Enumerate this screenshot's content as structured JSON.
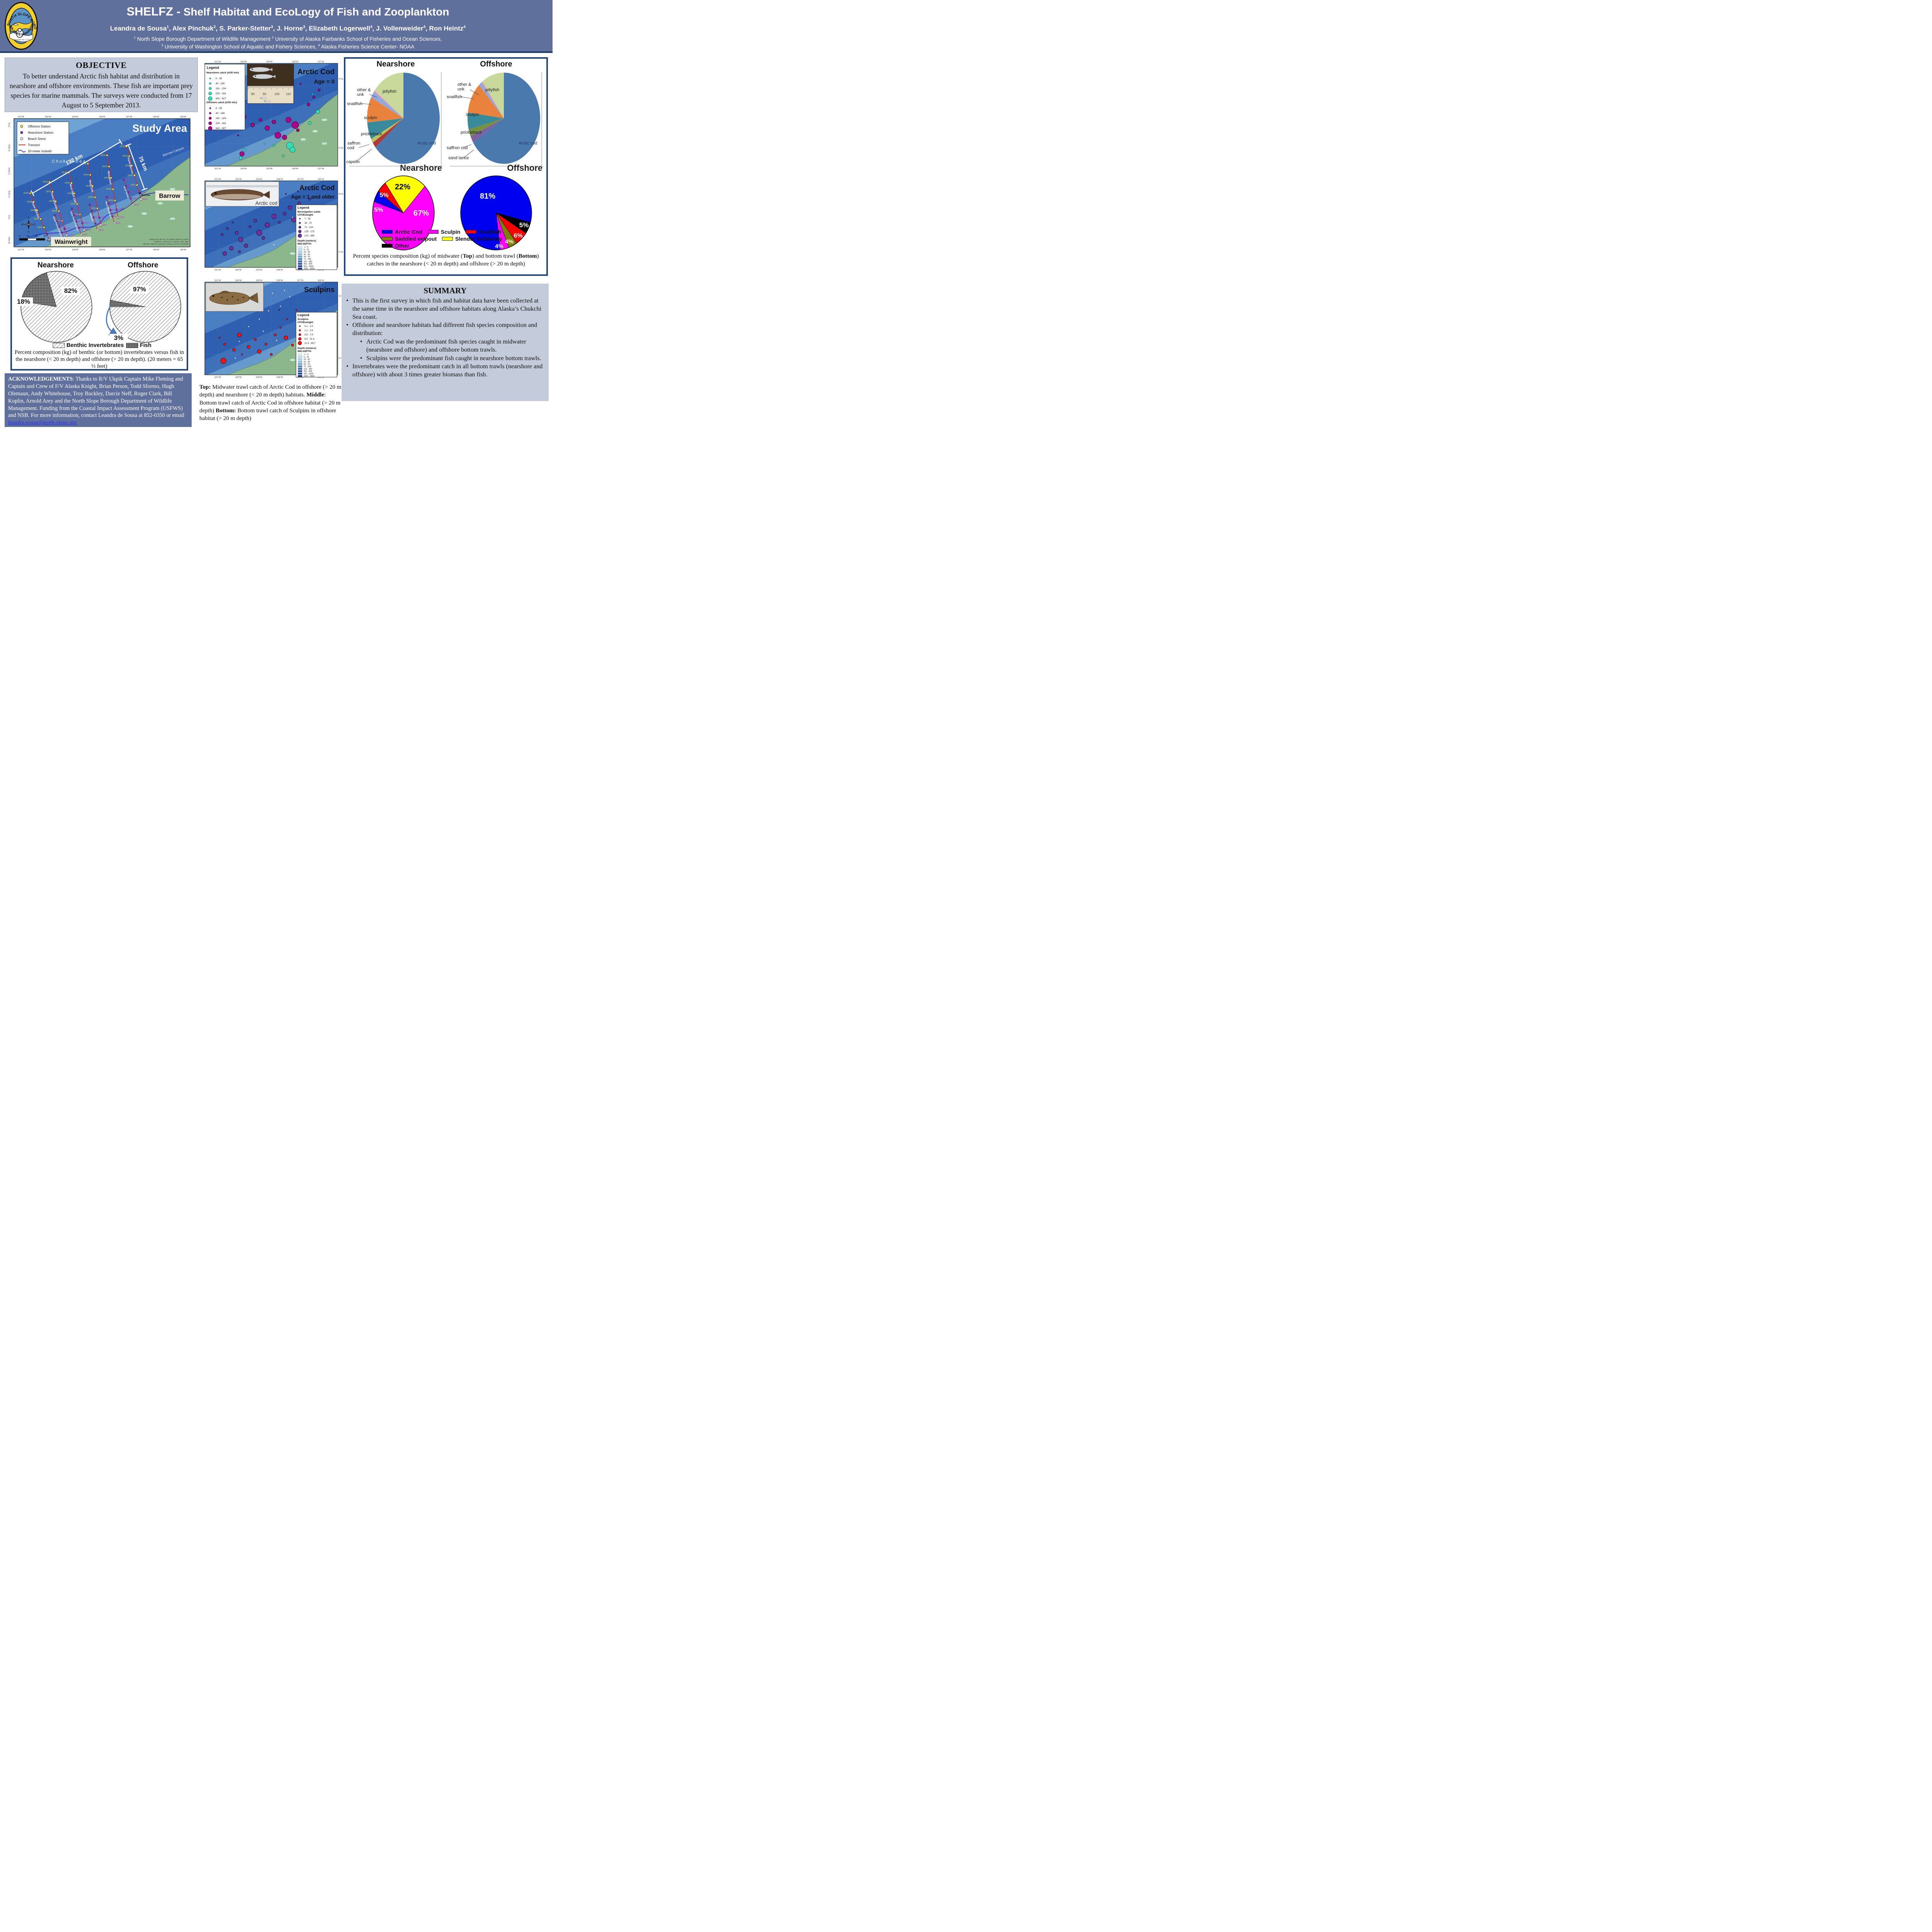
{
  "header": {
    "title_main": "SHELFZ -",
    "title_rest": " Shelf Habitat and EcoLogy of Fish and Zooplankton",
    "authors": [
      {
        "t": "Leandra de Sousa"
      },
      {
        "s": "1"
      },
      {
        "t": ", Alex Pinchuk"
      },
      {
        "s": "2"
      },
      {
        "t": ", S. Parker-Stetter"
      },
      {
        "s": "3"
      },
      {
        "t": ", J. Horne"
      },
      {
        "s": "3"
      },
      {
        "t": ", Elizabeth Logerwell"
      },
      {
        "s": "4"
      },
      {
        "t": ", J. Vollenweider"
      },
      {
        "s": "4"
      },
      {
        "t": ", Ron Heintz"
      },
      {
        "s": "4"
      }
    ],
    "affil1": [
      {
        "s": "1"
      },
      {
        "t": " North Slope Borough Department of Wildlife Management "
      },
      {
        "s": "2"
      },
      {
        "t": " University of Alaska Fairbanks School of Fisheries and Ocean Sciences,"
      }
    ],
    "affil2": [
      {
        "s": "3"
      },
      {
        "t": " University of Washington School of Aquatic and Fishery Sciences, "
      },
      {
        "s": "4"
      },
      {
        "t": " Alaska Fisheries Science Center- NOAA"
      }
    ],
    "logo": {
      "arc_top": "NORTH SLOPE BOROUGH",
      "banner": "WILDLIFE MANAGEMENT",
      "inner": "Incorporated July 2, 1972"
    }
  },
  "objective": {
    "title": "OBJECTIVE",
    "body": "To better understand Arctic fish habitat and distribution in nearshore and offshore environments. These fish are important prey species for marine mammals. The surveys were conducted from 17 August to 5 September 2013."
  },
  "study_map": {
    "title": "Study Area",
    "sea_label": "C h u k c h i   S e a",
    "canyon_label": "Barrow Canyon",
    "dist_long": "132 km",
    "dist_short": "75 km",
    "city_barrow": "Barrow",
    "city_barrow_small": "Barrow",
    "city_wainwright": "Wainwright",
    "legend": [
      {
        "sym": "offshore",
        "label": "Offshore Station"
      },
      {
        "sym": "nearshore",
        "label": "Nearshore Station"
      },
      {
        "sym": "seine",
        "label": "Beach Seine"
      },
      {
        "sym": "transect",
        "label": "Transect"
      },
      {
        "sym": "isobath",
        "label": "20-meter Isobath"
      }
    ],
    "transects_long": [
      "Point Belcher",
      "Point Franklin",
      "West Skull Cliff",
      "Skull Cliff",
      "Monument",
      "Point Barrow"
    ],
    "transects_short": [
      "West Point Franklin",
      "East Point Franklin",
      "Nullavik",
      "West Monument",
      "Boat Ramp"
    ],
    "offshore_stations": [
      "OF05",
      "OF04",
      "OF03",
      "OF02",
      "OF01"
    ],
    "nearshore_stations": [
      "NF05",
      "NF04",
      "NF03",
      "NF02",
      "NF01"
    ],
    "lon_ticks": [
      "161°W",
      "160°W",
      "159°W",
      "158°W",
      "157°W",
      "156°W",
      "155°W"
    ],
    "lat_ticks": [
      "72°N",
      "71°45'N",
      "71°30'N",
      "71°15'N",
      "71°N",
      "70°45'N"
    ],
    "depth_contour_labels": [
      "20",
      "40",
      "60",
      "80",
      "100"
    ],
    "scale_ticks": [
      "0",
      "10",
      "20",
      "30"
    ],
    "scale_unit": "km",
    "compass": [
      "N",
      "E",
      "S",
      "W"
    ],
    "credits": [
      "Bathymetry: IBCAO_V3; isobath depths in meters",
      "Projection: UTM Zone 4; Datum: WGS 1984",
      "ABR file: SHELFZ_Transects_Stations_03-322, 20130805"
    ]
  },
  "benthic": {
    "titles": [
      "Nearshore",
      "Offshore"
    ],
    "legend": [
      {
        "label": "Benthic Invertebrates",
        "pattern": "hatch"
      },
      {
        "label": "Fish",
        "pattern": "dots"
      }
    ],
    "caption": "Percent composition (kg) of benthic (or bottom) invertebrates versus fish in the nearshore (< 20 m depth) and offshore (> 20 m depth). (20 meters = 65 ½ feet)"
  },
  "ack": {
    "segments": [
      {
        "t": "ACKNOWLEDGEMENTS",
        "b": 1
      },
      {
        "t": ": Thanks to R/V Ukpik Captain Mike Fleming and Captain and Crew of F/V  Alaska Knight, Brian Person, Todd Sformo, Hugh Olemaun, Andy Whitehouse, Troy Buckley, Darcie Neff, Roger Clark, Bill Koplin, Arnold Arey and the  North Slope Borough Department of Wildlife Management.  Funding from the Coastal Impact Assessment Program (USFWS) and NSB. For more information, contact Leandra de Sousa at 852-0350 or email "
      },
      {
        "t": "leandra.sousa@north-slope.org",
        "link": 1
      }
    ]
  },
  "maps": [
    {
      "title": "Arctic Cod",
      "subtitle": "Age = 0",
      "lon_ticks": [
        "161°W",
        "160°W",
        "159°W",
        "158°W",
        "157°W"
      ],
      "lat_ticks": [
        "72°N",
        "71°N"
      ],
      "legend_title": "Legend",
      "legend_sections": [
        {
          "heading": "Nearshore catch (#/30 min)",
          "classes": [
            "0 - 39",
            "40 - 160",
            "161 - 224",
            "225 - 341",
            "342 - 927"
          ],
          "color": "#35dfb5",
          "stroke": "#14624b"
        },
        {
          "heading": "Offshore catch (#/30 min)",
          "classes": [
            "0 - 39",
            "40 - 160",
            "161 - 224",
            "225 - 341",
            "342 - 927"
          ],
          "color": "#b5008f",
          "stroke": "#43003a"
        }
      ],
      "inset_numbers": [
        "80",
        "90",
        "100",
        "110"
      ]
    },
    {
      "title": "Arctic Cod",
      "subtitle": "Age = 1 and older",
      "photo_label": "Arctic cod",
      "lon_ticks": [
        "161°W",
        "160°W",
        "159°W",
        "158°W",
        "157°W",
        "156°W"
      ],
      "lat_ticks": [
        "72°N",
        "71°N"
      ],
      "legend_title": "Legend",
      "species_line1": "Boreogadus saida",
      "species_line2": "CPUEweight",
      "cpue_classes": [
        "7 - 33",
        "34 - 70",
        "71 - 124",
        "125 - 173",
        "174 - 489"
      ],
      "cpue_color": "#7030a0",
      "depth_title": "Depth (meters)",
      "depth_sub": "MID-DEPTH",
      "depth_classes": [
        "-1 - 5",
        "6 - 25",
        "26 - 40",
        "41 - 55",
        "56 - 70",
        "71 - 150",
        "151 - 350",
        "351 - 900",
        "901 - 1500",
        "1501 - 3500"
      ]
    },
    {
      "title": "Sculpins",
      "subtitle": "",
      "lon_ticks": [
        "161°W",
        "160°W",
        "159°W",
        "158°W",
        "157°W",
        "156°W"
      ],
      "lat_ticks": [
        "72°N",
        "71°N"
      ],
      "legend_title": "Legend",
      "species_line1": "Sculpins",
      "species_line2": "CPUEweight",
      "cpue_classes": [
        "0.1 - 1.0",
        "1.1 - 3.4",
        "3.5 - 7.9",
        "8.0 - 21.4",
        "21.5 - 89.7"
      ],
      "cpue_color": "#ff1111",
      "depth_title": "Depth (meters)",
      "depth_sub": "MID-DEPTH",
      "depth_classes": [
        "-1 - 5",
        "6 - 25",
        "26 - 40",
        "41 - 55",
        "56 - 70",
        "71 - 150",
        "151 - 350",
        "351 - 900",
        "901 - 1500",
        "1501 - 3500"
      ]
    }
  ],
  "maps_caption": {
    "segments": [
      {
        "t": "Top:",
        "b": 1
      },
      {
        "t": " Midwater trawl catch of Arctic Cod  in offshore (> 20 m depth) and nearshore (< 20 m depth) habitats. "
      },
      {
        "t": "Middle",
        "b": 1
      },
      {
        "t": ": Bottom trawl catch of Arctic Cod in offshore habitat (> 20 m depth) "
      },
      {
        "t": "Bottom:",
        "b": 1
      },
      {
        "t": " Bottom trawl catch of Sculpins in offshore habitat (> 20 m depth)"
      }
    ]
  },
  "species_box": {
    "col_titles": [
      "Nearshore",
      "Offshore"
    ],
    "watermarks": [
      "Nearshore",
      "Offshore"
    ],
    "legend": [
      {
        "label": "Arctic Cod",
        "color": "#0000f0"
      },
      {
        "label": "Sculpin",
        "color": "#ff00ff"
      },
      {
        "label": "Snailfish",
        "color": "#ff0000"
      },
      {
        "label": "Saddled eelpout",
        "color": "#7f7f00"
      },
      {
        "label": "Slender Eelblenny",
        "color": "#ffff00"
      },
      {
        "label": "Other",
        "color": "#000000"
      }
    ],
    "caption_segments": [
      {
        "t": "Percent species composition (kg) of midwater ("
      },
      {
        "t": "Top",
        "b": 1
      },
      {
        "t": ") and bottom trawl ("
      },
      {
        "t": "Bottom",
        "b": 1
      },
      {
        "t": ") catches in the nearshore (< 20 m depth) and offshore (> 20 m depth)"
      }
    ]
  },
  "summary": {
    "title": "SUMMARY",
    "bullets": [
      {
        "level": 1,
        "text": "This is the first survey in which fish and habitat data have been collected at the same time in the nearshore and offshore habitats along Alaska’s Chukchi Sea coast."
      },
      {
        "level": 1,
        "text": "Offshore and nearshore habitats had different fish species composition and distribution:"
      },
      {
        "level": 2,
        "text": "Arctic Cod was the predominant fish species caught in midwater (nearshore and offshore)  and offshore bottom trawls."
      },
      {
        "level": 2,
        "text": "Sculpins were the  predominant fish caught in nearshore bottom trawls."
      },
      {
        "level": 1,
        "text": "Invertebrates were the predominant catch in all bottom trawls (nearshore and offshore) with about 3 times greater biomass than fish."
      }
    ]
  },
  "chart_data": [
    {
      "id": "nearshore_midwater_species",
      "type": "pie",
      "title": "Nearshore",
      "note": "midwater trawl species composition, % of catch weight (kg), values estimated from figure",
      "start_angle": -90,
      "slices": [
        {
          "label": "Arctic cod",
          "value": 64,
          "color": "#4a79ae"
        },
        {
          "label": "capelin",
          "value": 2,
          "color": "#b03a38"
        },
        {
          "label": "saffron cod",
          "value": 1.5,
          "color": "#b9c45e"
        },
        {
          "label": "prickleback",
          "value": 6,
          "color": "#3a8a9c"
        },
        {
          "label": "sculpin",
          "value": 9,
          "color": "#e8823c"
        },
        {
          "label": "snailfish",
          "value": 2.5,
          "color": "#93a9dc"
        },
        {
          "label": "other & unk",
          "value": 0.5,
          "color": "#e8a0aa"
        },
        {
          "label": "jellyfish",
          "value": 14.5,
          "color": "#c9d89b"
        }
      ]
    },
    {
      "id": "offshore_midwater_species",
      "type": "pie",
      "title": "Offshore",
      "note": "midwater trawl species composition, % of catch weight (kg), values estimated from figure",
      "start_angle": -90,
      "slices": [
        {
          "label": "Arctic cod",
          "value": 66,
          "color": "#4a79ae"
        },
        {
          "label": "sand lance",
          "value": 2.5,
          "color": "#7d62a0"
        },
        {
          "label": "saffron cod",
          "value": 2.5,
          "color": "#76923c"
        },
        {
          "label": "prickleback",
          "value": 6,
          "color": "#3a8a9c"
        },
        {
          "label": "sculpin",
          "value": 11,
          "color": "#e8823c"
        },
        {
          "label": "snailfish",
          "value": 1.5,
          "color": "#93a9dc"
        },
        {
          "label": "other & unk",
          "value": 0.5,
          "color": "#e8a0aa"
        },
        {
          "label": "jellyfish",
          "value": 10,
          "color": "#c9d89b"
        }
      ]
    },
    {
      "id": "nearshore_bottom_trawl",
      "type": "pie",
      "start_angle": -126,
      "slices": [
        {
          "label": "Slender Eelblenny",
          "value": 22,
          "color": "#ffff00"
        },
        {
          "label": "Sculpin",
          "value": 67,
          "color": "#ff00ff"
        },
        {
          "label": "Arctic Cod",
          "value": 5,
          "color": "#0000f0"
        },
        {
          "label": "Snailfish",
          "value": 5,
          "color": "#ff0000"
        }
      ]
    },
    {
      "id": "offshore_bottom_trawl",
      "type": "pie",
      "start_angle": 15,
      "slices": [
        {
          "label": "Other",
          "value": 5,
          "color": "#000000"
        },
        {
          "label": "Snailfish",
          "value": 6,
          "color": "#ff0000"
        },
        {
          "label": "Saddled eelpout",
          "value": 4,
          "color": "#7f7f00"
        },
        {
          "label": "Sculpin",
          "value": 4,
          "color": "#ff00ff"
        },
        {
          "label": "Arctic Cod",
          "value": 81,
          "color": "#0000f0"
        }
      ]
    },
    {
      "id": "nearshore_benthic_vs_fish",
      "type": "pie",
      "start_angle": 253.8,
      "slices": [
        {
          "label": "Benthic Invertebrates",
          "value": 82,
          "pattern": "hatch"
        },
        {
          "label": "Fish",
          "value": 18,
          "pattern": "dots"
        }
      ]
    },
    {
      "id": "offshore_benthic_vs_fish",
      "type": "pie",
      "start_angle": 190.8,
      "slices": [
        {
          "label": "Benthic Invertebrates",
          "value": 97,
          "pattern": "hatch"
        },
        {
          "label": "Fish",
          "value": 3,
          "pattern": "dots"
        }
      ]
    }
  ]
}
